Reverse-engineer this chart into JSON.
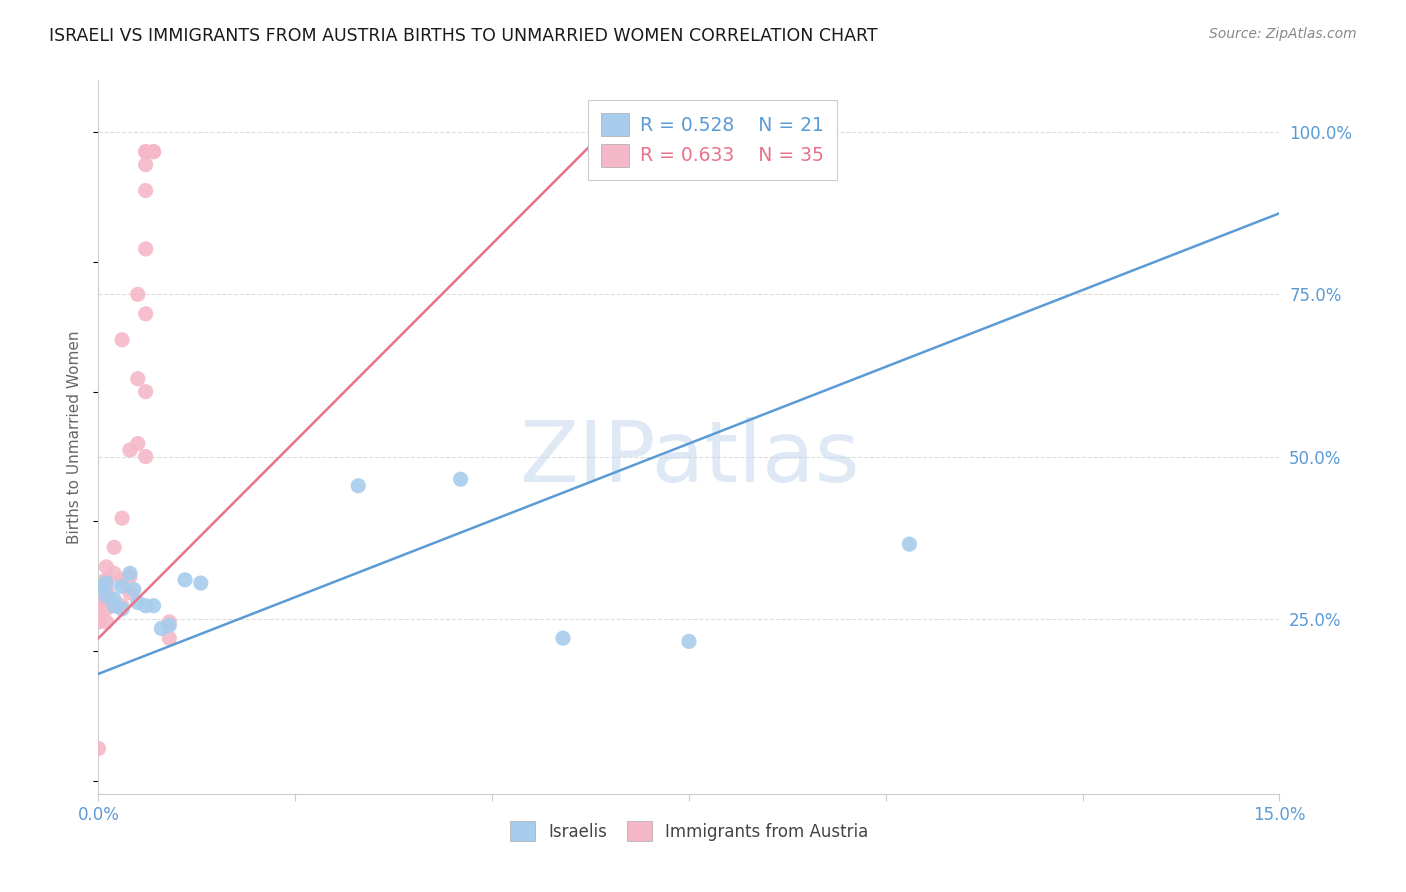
{
  "title": "ISRAELI VS IMMIGRANTS FROM AUSTRIA BIRTHS TO UNMARRIED WOMEN CORRELATION CHART",
  "source": "Source: ZipAtlas.com",
  "ylabel": "Births to Unmarried Women",
  "xlim": [
    0.0,
    0.15
  ],
  "ylim": [
    -0.02,
    1.08
  ],
  "ytick_labels_right": [
    "100.0%",
    "75.0%",
    "50.0%",
    "25.0%"
  ],
  "ytick_vals_right": [
    1.0,
    0.75,
    0.5,
    0.25
  ],
  "blue_label": "Israelis",
  "pink_label": "Immigrants from Austria",
  "blue_R": "0.528",
  "blue_N": "21",
  "pink_R": "0.633",
  "pink_N": "35",
  "blue_color": "#a8ccec",
  "pink_color": "#f5b8c8",
  "blue_line_color": "#5b9bd5",
  "pink_line_color": "#e8728a",
  "blue_scatter_x": [
    0.0005,
    0.001,
    0.001,
    0.002,
    0.002,
    0.003,
    0.003,
    0.004,
    0.0045,
    0.005,
    0.006,
    0.007,
    0.008,
    0.009,
    0.011,
    0.013,
    0.033,
    0.046,
    0.059,
    0.075,
    0.103
  ],
  "blue_scatter_y": [
    0.3,
    0.305,
    0.285,
    0.28,
    0.27,
    0.265,
    0.3,
    0.32,
    0.295,
    0.275,
    0.27,
    0.27,
    0.235,
    0.24,
    0.31,
    0.305,
    0.455,
    0.465,
    0.22,
    0.215,
    0.365
  ],
  "pink_scatter_x": [
    0.0,
    0.0,
    0.0,
    0.0,
    0.001,
    0.001,
    0.001,
    0.001,
    0.001,
    0.001,
    0.002,
    0.002,
    0.002,
    0.003,
    0.003,
    0.003,
    0.003,
    0.004,
    0.004,
    0.004,
    0.005,
    0.005,
    0.005,
    0.006,
    0.006,
    0.006,
    0.006,
    0.006,
    0.006,
    0.006,
    0.006,
    0.007,
    0.007,
    0.009,
    0.009
  ],
  "pink_scatter_y": [
    0.05,
    0.245,
    0.26,
    0.27,
    0.245,
    0.265,
    0.28,
    0.295,
    0.31,
    0.33,
    0.27,
    0.32,
    0.36,
    0.27,
    0.31,
    0.405,
    0.68,
    0.29,
    0.315,
    0.51,
    0.52,
    0.62,
    0.75,
    0.5,
    0.6,
    0.72,
    0.82,
    0.91,
    0.95,
    0.97,
    0.97,
    0.97,
    0.97,
    0.245,
    0.22
  ],
  "blue_line_x": [
    0.0,
    0.15
  ],
  "blue_line_y": [
    0.165,
    0.875
  ],
  "pink_line_x": [
    0.0,
    0.065
  ],
  "pink_line_y": [
    0.22,
    1.01
  ],
  "watermark_text": "ZIPatlas",
  "watermark_color": "#c5d8ee",
  "background_color": "#ffffff",
  "grid_color": "#dddddd",
  "title_color": "#1a1a1a",
  "right_axis_color": "#5b9bd5",
  "xlabel_color": "#5b9bd5"
}
